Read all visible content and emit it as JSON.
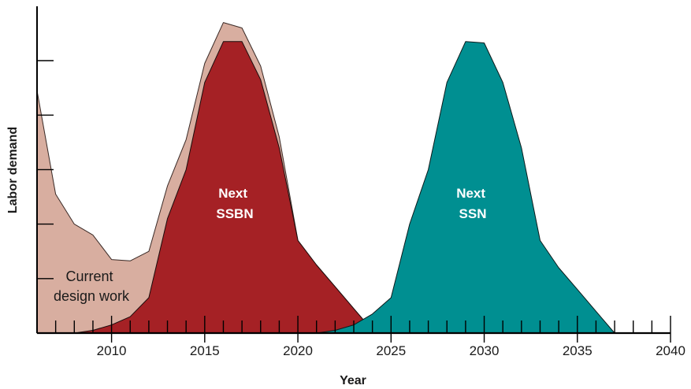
{
  "chart_data": {
    "type": "area",
    "xlabel": "Year",
    "ylabel": "Labor demand",
    "xlim": [
      2006,
      2040
    ],
    "ylim": [
      0,
      100
    ],
    "x_tick_labels": [
      2010,
      2015,
      2020,
      2025,
      2030,
      2035,
      2040
    ],
    "x_minor_step": 1,
    "y_tick_values": [
      20,
      40,
      60,
      80,
      100
    ],
    "grid": false,
    "series": [
      {
        "name": "Current design work",
        "label_lines": [
          "Current",
          "design work"
        ],
        "color": "#d8aea0",
        "stroke": "#3a2a26",
        "points": [
          [
            2006,
            89
          ],
          [
            2007,
            51
          ],
          [
            2008,
            40
          ],
          [
            2009,
            36
          ],
          [
            2010,
            27
          ],
          [
            2011,
            26.5
          ],
          [
            2012,
            30
          ],
          [
            2013,
            54
          ],
          [
            2014,
            71
          ],
          [
            2015,
            99
          ],
          [
            2016,
            114
          ],
          [
            2017,
            112
          ],
          [
            2018,
            98
          ],
          [
            2019,
            72
          ],
          [
            2020,
            34
          ],
          [
            2021,
            25
          ],
          [
            2022,
            17
          ],
          [
            2023,
            9
          ],
          [
            2024,
            1
          ]
        ]
      },
      {
        "name": "Next SSBN",
        "label_lines": [
          "Next",
          "SSBN"
        ],
        "color": "#a52125",
        "stroke": "#1a0c0c",
        "points": [
          [
            2008,
            0
          ],
          [
            2009,
            1
          ],
          [
            2010,
            3
          ],
          [
            2011,
            6
          ],
          [
            2012,
            13
          ],
          [
            2013,
            42
          ],
          [
            2014,
            60
          ],
          [
            2015,
            92
          ],
          [
            2016,
            107
          ],
          [
            2017,
            107
          ],
          [
            2018,
            93
          ],
          [
            2019,
            68
          ],
          [
            2020,
            34
          ],
          [
            2021,
            25
          ],
          [
            2022,
            17
          ],
          [
            2023,
            9
          ],
          [
            2024,
            1
          ]
        ]
      },
      {
        "name": "Next SSN",
        "label_lines": [
          "Next",
          "SSN"
        ],
        "color": "#008f91",
        "stroke": "#0c1a1a",
        "points": [
          [
            2021,
            0
          ],
          [
            2022,
            1
          ],
          [
            2023,
            3
          ],
          [
            2024,
            7
          ],
          [
            2025,
            13
          ],
          [
            2026,
            40
          ],
          [
            2027,
            60
          ],
          [
            2028,
            92
          ],
          [
            2029,
            107
          ],
          [
            2030,
            106.5
          ],
          [
            2031,
            92
          ],
          [
            2032,
            68
          ],
          [
            2033,
            34
          ],
          [
            2034,
            24
          ],
          [
            2035,
            16
          ],
          [
            2036,
            8
          ],
          [
            2037,
            0
          ]
        ]
      }
    ]
  }
}
